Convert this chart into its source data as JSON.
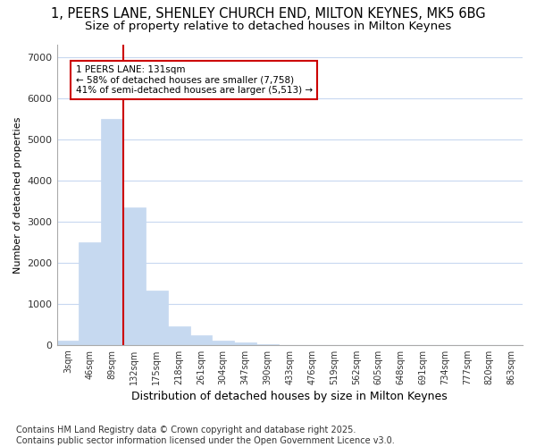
{
  "title_line1": "1, PEERS LANE, SHENLEY CHURCH END, MILTON KEYNES, MK5 6BG",
  "title_line2": "Size of property relative to detached houses in Milton Keynes",
  "xlabel": "Distribution of detached houses by size in Milton Keynes",
  "ylabel": "Number of detached properties",
  "footer_line1": "Contains HM Land Registry data © Crown copyright and database right 2025.",
  "footer_line2": "Contains public sector information licensed under the Open Government Licence v3.0.",
  "bar_labels": [
    "3sqm",
    "46sqm",
    "89sqm",
    "132sqm",
    "175sqm",
    "218sqm",
    "261sqm",
    "304sqm",
    "347sqm",
    "390sqm",
    "433sqm",
    "476sqm",
    "519sqm",
    "562sqm",
    "605sqm",
    "648sqm",
    "691sqm",
    "734sqm",
    "777sqm",
    "820sqm",
    "863sqm"
  ],
  "bar_values": [
    100,
    2500,
    5500,
    3350,
    1320,
    450,
    230,
    105,
    60,
    15,
    0,
    0,
    0,
    0,
    0,
    0,
    0,
    0,
    0,
    0,
    0
  ],
  "bar_color": "#c6d9f0",
  "bar_edge_color": "#c6d9f0",
  "vline_x": 2.5,
  "vline_color": "#cc0000",
  "annotation_text": "1 PEERS LANE: 131sqm\n← 58% of detached houses are smaller (7,758)\n41% of semi-detached houses are larger (5,513) →",
  "annotation_box_color": "#ffffff",
  "annotation_box_edge": "#cc0000",
  "ylim": [
    0,
    7300
  ],
  "yticks": [
    0,
    1000,
    2000,
    3000,
    4000,
    5000,
    6000,
    7000
  ],
  "bg_color": "#ffffff",
  "axes_bg_color": "#ffffff",
  "grid_color": "#c8d8f0",
  "title_fontsize": 10.5,
  "subtitle_fontsize": 9.5,
  "footer_fontsize": 7
}
